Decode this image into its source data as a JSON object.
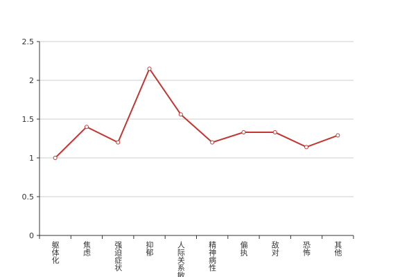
{
  "chart_data": {
    "type": "line",
    "categories": [
      "躯体化",
      "焦虑",
      "强迫症状",
      "抑郁",
      "人际关系敏感",
      "精神病性",
      "偏执",
      "敌对",
      "恐怖",
      "其他"
    ],
    "values": [
      1.0,
      1.4,
      1.2,
      2.15,
      1.56,
      1.2,
      1.33,
      1.33,
      1.14,
      1.29
    ],
    "color": "#c23531",
    "ylim": [
      0,
      2.5
    ],
    "yticks": [
      0,
      0.5,
      1,
      1.5,
      2,
      2.5
    ],
    "grid": true
  }
}
